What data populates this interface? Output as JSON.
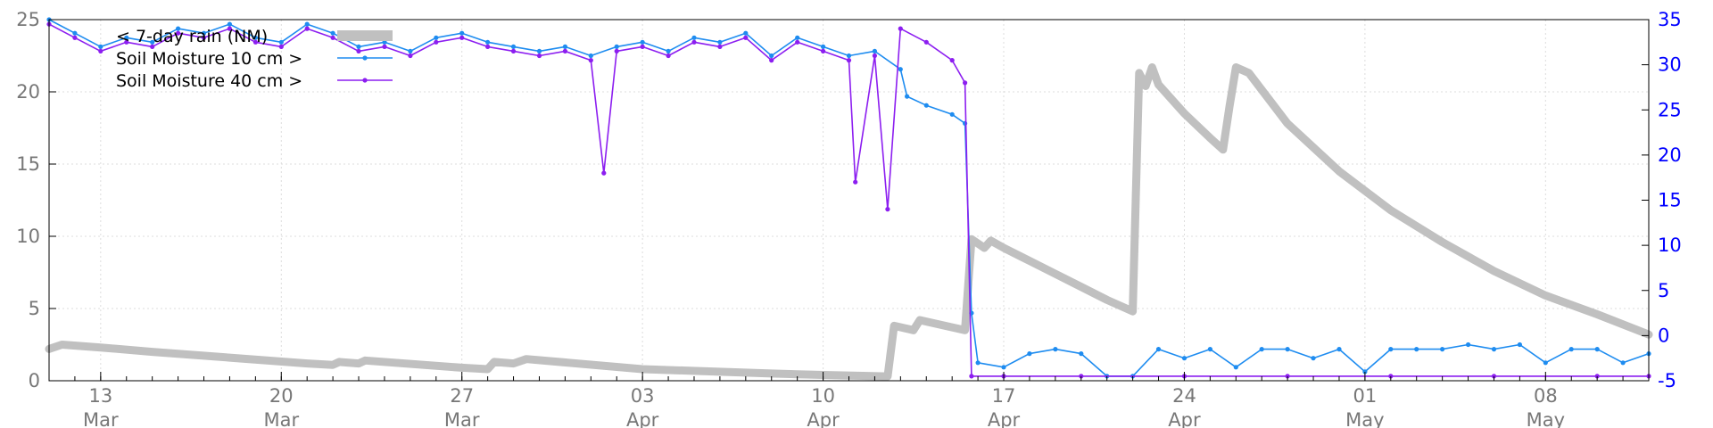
{
  "chart_data": {
    "type": "line",
    "title": "",
    "xlabel": "",
    "ylabel": "",
    "x_range": [
      "2025-03-11",
      "2025-05-12"
    ],
    "y_left": {
      "min": 0,
      "max": 25,
      "ticks": [
        "0",
        "5",
        "10",
        "15",
        "20",
        "25"
      ]
    },
    "y_right": {
      "min": -5,
      "max": 35,
      "ticks": [
        "-5",
        "0",
        "5",
        "10",
        "15",
        "20",
        "25",
        "30",
        "35"
      ]
    },
    "x_ticks": [
      {
        "date": "2025-03-13",
        "day": "13",
        "month": "Mar"
      },
      {
        "date": "2025-03-20",
        "day": "20",
        "month": "Mar"
      },
      {
        "date": "2025-03-27",
        "day": "27",
        "month": "Mar"
      },
      {
        "date": "2025-04-03",
        "day": "03",
        "month": "Apr"
      },
      {
        "date": "2025-04-10",
        "day": "10",
        "month": "Apr"
      },
      {
        "date": "2025-04-17",
        "day": "17",
        "month": "Apr"
      },
      {
        "date": "2025-04-24",
        "day": "24",
        "month": "Apr"
      },
      {
        "date": "2025-05-01",
        "day": "01",
        "month": "May"
      },
      {
        "date": "2025-05-08",
        "day": "08",
        "month": "May"
      }
    ],
    "grid": true,
    "legend_position": "top-left",
    "series": [
      {
        "name": "< 7-day rain (NM)",
        "axis": "left",
        "color": "#c0c0c0",
        "style": "thick",
        "points": [
          [
            "2025-03-11",
            2.2
          ],
          [
            "2025-03-11 12:00",
            2.5
          ],
          [
            "2025-03-13",
            2.3
          ],
          [
            "2025-03-15",
            2.0
          ],
          [
            "2025-03-18",
            1.6
          ],
          [
            "2025-03-21",
            1.2
          ],
          [
            "2025-03-22",
            1.1
          ],
          [
            "2025-03-22 06:00",
            1.3
          ],
          [
            "2025-03-23",
            1.2
          ],
          [
            "2025-03-23 06:00",
            1.4
          ],
          [
            "2025-03-27",
            0.9
          ],
          [
            "2025-03-28",
            0.8
          ],
          [
            "2025-03-28 06:00",
            1.3
          ],
          [
            "2025-03-29",
            1.2
          ],
          [
            "2025-03-29 12:00",
            1.5
          ],
          [
            "2025-04-03",
            0.8
          ],
          [
            "2025-04-08",
            0.5
          ],
          [
            "2025-04-10",
            0.4
          ],
          [
            "2025-04-12 12:00",
            0.3
          ],
          [
            "2025-04-12 18:00",
            3.8
          ],
          [
            "2025-04-13 12:00",
            3.5
          ],
          [
            "2025-04-13 18:00",
            4.2
          ],
          [
            "2025-04-15",
            3.7
          ],
          [
            "2025-04-15 12:00",
            3.5
          ],
          [
            "2025-04-15 18:00",
            9.8
          ],
          [
            "2025-04-16 06:00",
            9.2
          ],
          [
            "2025-04-16 12:00",
            9.7
          ],
          [
            "2025-04-17",
            9.2
          ],
          [
            "2025-04-18",
            8.3
          ],
          [
            "2025-04-19",
            7.4
          ],
          [
            "2025-04-20",
            6.5
          ],
          [
            "2025-04-21",
            5.6
          ],
          [
            "2025-04-22",
            4.8
          ],
          [
            "2025-04-22 06:00",
            21.3
          ],
          [
            "2025-04-22 12:00",
            20.4
          ],
          [
            "2025-04-22 18:00",
            21.7
          ],
          [
            "2025-04-23",
            20.5
          ],
          [
            "2025-04-24",
            18.5
          ],
          [
            "2025-04-25",
            16.8
          ],
          [
            "2025-04-25 12:00",
            16.0
          ],
          [
            "2025-04-25 18:00",
            19.0
          ],
          [
            "2025-04-26",
            21.7
          ],
          [
            "2025-04-26 12:00",
            21.3
          ],
          [
            "2025-04-28",
            17.8
          ],
          [
            "2025-04-30",
            14.5
          ],
          [
            "2025-05-02",
            11.8
          ],
          [
            "2025-05-04",
            9.6
          ],
          [
            "2025-05-06",
            7.6
          ],
          [
            "2025-05-08",
            5.9
          ],
          [
            "2025-05-10",
            4.6
          ],
          [
            "2025-05-12",
            3.2
          ]
        ]
      },
      {
        "name": "Soil Moisture 10 cm >",
        "axis": "right",
        "color": "#1e8cf0",
        "style": "thin-points",
        "points": [
          [
            "2025-03-11",
            35.0
          ],
          [
            "2025-03-12",
            33.5
          ],
          [
            "2025-03-13",
            32.0
          ],
          [
            "2025-03-14",
            33.0
          ],
          [
            "2025-03-15",
            32.5
          ],
          [
            "2025-03-16",
            34.0
          ],
          [
            "2025-03-17",
            33.5
          ],
          [
            "2025-03-18",
            34.5
          ],
          [
            "2025-03-19",
            33.0
          ],
          [
            "2025-03-20",
            32.5
          ],
          [
            "2025-03-21",
            34.5
          ],
          [
            "2025-03-22",
            33.5
          ],
          [
            "2025-03-23",
            32.0
          ],
          [
            "2025-03-24",
            32.5
          ],
          [
            "2025-03-25",
            31.5
          ],
          [
            "2025-03-26",
            33.0
          ],
          [
            "2025-03-27",
            33.5
          ],
          [
            "2025-03-28",
            32.5
          ],
          [
            "2025-03-29",
            32.0
          ],
          [
            "2025-03-30",
            31.5
          ],
          [
            "2025-03-31",
            32.0
          ],
          [
            "2025-04-01",
            31.0
          ],
          [
            "2025-04-02",
            32.0
          ],
          [
            "2025-04-03",
            32.5
          ],
          [
            "2025-04-04",
            31.5
          ],
          [
            "2025-04-05",
            33.0
          ],
          [
            "2025-04-06",
            32.5
          ],
          [
            "2025-04-07",
            33.5
          ],
          [
            "2025-04-08",
            31.0
          ],
          [
            "2025-04-09",
            33.0
          ],
          [
            "2025-04-10",
            32.0
          ],
          [
            "2025-04-11",
            31.0
          ],
          [
            "2025-04-12",
            31.5
          ],
          [
            "2025-04-13",
            29.5
          ],
          [
            "2025-04-13 06:00",
            26.5
          ],
          [
            "2025-04-14",
            25.5
          ],
          [
            "2025-04-15",
            24.5
          ],
          [
            "2025-04-15 12:00",
            23.5
          ],
          [
            "2025-04-15 18:00",
            2.5
          ],
          [
            "2025-04-16",
            -3.0
          ],
          [
            "2025-04-17",
            -3.5
          ],
          [
            "2025-04-18",
            -2.0
          ],
          [
            "2025-04-19",
            -1.5
          ],
          [
            "2025-04-20",
            -2.0
          ],
          [
            "2025-04-21",
            -4.5
          ],
          [
            "2025-04-22",
            -4.5
          ],
          [
            "2025-04-23",
            -1.5
          ],
          [
            "2025-04-24",
            -2.5
          ],
          [
            "2025-04-25",
            -1.5
          ],
          [
            "2025-04-26",
            -3.5
          ],
          [
            "2025-04-27",
            -1.5
          ],
          [
            "2025-04-28",
            -1.5
          ],
          [
            "2025-04-29",
            -2.5
          ],
          [
            "2025-04-30",
            -1.5
          ],
          [
            "2025-05-01",
            -4.0
          ],
          [
            "2025-05-02",
            -1.5
          ],
          [
            "2025-05-03",
            -1.5
          ],
          [
            "2025-05-04",
            -1.5
          ],
          [
            "2025-05-05",
            -1.0
          ],
          [
            "2025-05-06",
            -1.5
          ],
          [
            "2025-05-07",
            -1.0
          ],
          [
            "2025-05-08",
            -3.0
          ],
          [
            "2025-05-09",
            -1.5
          ],
          [
            "2025-05-10",
            -1.5
          ],
          [
            "2025-05-11",
            -3.0
          ],
          [
            "2025-05-12",
            -2.0
          ]
        ]
      },
      {
        "name": "Soil Moisture 40 cm >",
        "axis": "right",
        "color": "#8c1ef0",
        "style": "thin-points",
        "points": [
          [
            "2025-03-11",
            34.5
          ],
          [
            "2025-03-12",
            33.0
          ],
          [
            "2025-03-13",
            31.5
          ],
          [
            "2025-03-14",
            32.5
          ],
          [
            "2025-03-15",
            32.0
          ],
          [
            "2025-03-16",
            33.5
          ],
          [
            "2025-03-17",
            33.0
          ],
          [
            "2025-03-18",
            34.0
          ],
          [
            "2025-03-19",
            32.5
          ],
          [
            "2025-03-20",
            32.0
          ],
          [
            "2025-03-21",
            34.0
          ],
          [
            "2025-03-22",
            33.0
          ],
          [
            "2025-03-23",
            31.5
          ],
          [
            "2025-03-24",
            32.0
          ],
          [
            "2025-03-25",
            31.0
          ],
          [
            "2025-03-26",
            32.5
          ],
          [
            "2025-03-27",
            33.0
          ],
          [
            "2025-03-28",
            32.0
          ],
          [
            "2025-03-29",
            31.5
          ],
          [
            "2025-03-30",
            31.0
          ],
          [
            "2025-03-31",
            31.5
          ],
          [
            "2025-04-01",
            30.5
          ],
          [
            "2025-04-01 12:00",
            18.0
          ],
          [
            "2025-04-02",
            31.5
          ],
          [
            "2025-04-03",
            32.0
          ],
          [
            "2025-04-04",
            31.0
          ],
          [
            "2025-04-05",
            32.5
          ],
          [
            "2025-04-06",
            32.0
          ],
          [
            "2025-04-07",
            33.0
          ],
          [
            "2025-04-08",
            30.5
          ],
          [
            "2025-04-09",
            32.5
          ],
          [
            "2025-04-10",
            31.5
          ],
          [
            "2025-04-11",
            30.5
          ],
          [
            "2025-04-11 06:00",
            17.0
          ],
          [
            "2025-04-12",
            31.0
          ],
          [
            "2025-04-12 12:00",
            14.0
          ],
          [
            "2025-04-13",
            34.0
          ],
          [
            "2025-04-14",
            32.5
          ],
          [
            "2025-04-15",
            30.5
          ],
          [
            "2025-04-15 12:00",
            28.0
          ],
          [
            "2025-04-15 18:00",
            -4.5
          ],
          [
            "2025-04-17",
            -4.5
          ],
          [
            "2025-04-20",
            -4.5
          ],
          [
            "2025-04-24",
            -4.5
          ],
          [
            "2025-04-28",
            -4.5
          ],
          [
            "2025-05-02",
            -4.5
          ],
          [
            "2025-05-06",
            -4.5
          ],
          [
            "2025-05-10",
            -4.5
          ],
          [
            "2025-05-12",
            -4.5
          ]
        ]
      }
    ]
  }
}
